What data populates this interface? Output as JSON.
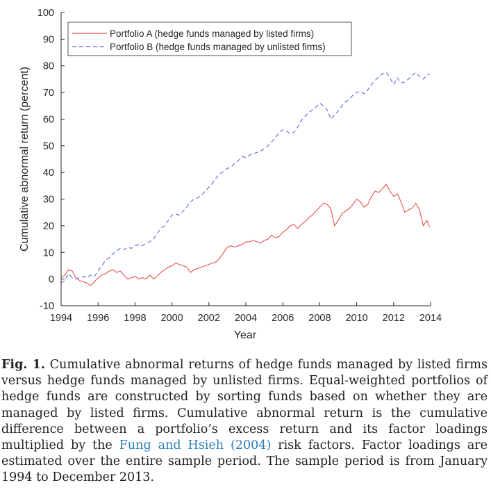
{
  "chart_data": {
    "type": "line",
    "title": "",
    "xlabel": "Year",
    "ylabel": "Cumulative abnormal return (percent)",
    "xlim": [
      1994,
      2014
    ],
    "ylim": [
      -10,
      100
    ],
    "xticks": [
      "1994",
      "1996",
      "1998",
      "2000",
      "2002",
      "2004",
      "2006",
      "2008",
      "2010",
      "2012",
      "2014"
    ],
    "yticks": [
      "-10",
      "0",
      "10",
      "20",
      "30",
      "40",
      "50",
      "60",
      "70",
      "80",
      "90",
      "100"
    ],
    "grid": false,
    "legend_position": "top-left",
    "series": [
      {
        "name": "Portfolio A (hedge funds managed by listed firms)",
        "color": "#e8504a",
        "style": "solid",
        "x": [
          1994.0,
          1994.2,
          1994.4,
          1994.6,
          1994.8,
          1995.0,
          1995.2,
          1995.4,
          1995.6,
          1995.8,
          1996.0,
          1996.2,
          1996.4,
          1996.6,
          1996.8,
          1997.0,
          1997.2,
          1997.4,
          1997.6,
          1997.8,
          1998.0,
          1998.2,
          1998.4,
          1998.6,
          1998.8,
          1999.0,
          1999.2,
          1999.4,
          1999.6,
          1999.8,
          2000.0,
          2000.2,
          2000.4,
          2000.6,
          2000.8,
          2001.0,
          2001.2,
          2001.4,
          2001.6,
          2001.8,
          2002.0,
          2002.2,
          2002.4,
          2002.6,
          2002.8,
          2003.0,
          2003.2,
          2003.4,
          2003.6,
          2003.8,
          2004.0,
          2004.2,
          2004.4,
          2004.6,
          2004.8,
          2005.0,
          2005.2,
          2005.4,
          2005.6,
          2005.8,
          2006.0,
          2006.2,
          2006.4,
          2006.6,
          2006.8,
          2007.0,
          2007.2,
          2007.4,
          2007.6,
          2007.8,
          2008.0,
          2008.2,
          2008.4,
          2008.6,
          2008.8,
          2009.0,
          2009.2,
          2009.4,
          2009.6,
          2009.8,
          2010.0,
          2010.2,
          2010.4,
          2010.6,
          2010.8,
          2011.0,
          2011.2,
          2011.4,
          2011.6,
          2011.8,
          2012.0,
          2012.2,
          2012.4,
          2012.6,
          2012.8,
          2013.0,
          2013.2,
          2013.4,
          2013.6,
          2013.8,
          2013.95
        ],
        "y": [
          0.5,
          1.5,
          3.5,
          3.0,
          0.5,
          -0.5,
          -1.0,
          -1.5,
          -2.5,
          -1.0,
          0.5,
          1.5,
          2.0,
          3.0,
          3.5,
          2.5,
          3.0,
          1.5,
          0.0,
          0.5,
          1.0,
          0.0,
          0.5,
          0.0,
          1.5,
          0.0,
          1.0,
          2.5,
          3.5,
          4.5,
          5.0,
          6.0,
          5.5,
          5.0,
          4.5,
          2.5,
          3.5,
          4.0,
          4.5,
          5.0,
          5.5,
          6.0,
          6.5,
          8.0,
          10.0,
          12.0,
          12.5,
          12.0,
          12.5,
          13.0,
          14.0,
          14.0,
          14.5,
          14.0,
          13.5,
          14.5,
          15.0,
          16.5,
          15.5,
          16.0,
          17.5,
          18.5,
          20.0,
          20.5,
          19.0,
          20.5,
          21.5,
          23.0,
          24.0,
          25.5,
          27.0,
          28.5,
          28.0,
          26.5,
          20.0,
          22.0,
          24.5,
          25.5,
          26.5,
          28.0,
          30.0,
          29.0,
          27.0,
          28.0,
          31.0,
          33.0,
          32.5,
          34.0,
          35.5,
          33.0,
          31.0,
          32.0,
          29.0,
          25.0,
          26.0,
          26.5,
          28.5,
          26.0,
          20.0,
          22.0,
          19.5
        ]
      },
      {
        "name": "Portfolio B (hedge funds managed by unlisted firms)",
        "color": "#5a66e8",
        "style": "dashed",
        "x": [
          1994.0,
          1994.2,
          1994.4,
          1994.6,
          1994.8,
          1995.0,
          1995.2,
          1995.4,
          1995.6,
          1995.8,
          1996.0,
          1996.2,
          1996.4,
          1996.6,
          1996.8,
          1997.0,
          1997.2,
          1997.4,
          1997.6,
          1997.8,
          1998.0,
          1998.2,
          1998.4,
          1998.6,
          1998.8,
          1999.0,
          1999.2,
          1999.4,
          1999.6,
          1999.8,
          2000.0,
          2000.2,
          2000.4,
          2000.6,
          2000.8,
          2001.0,
          2001.2,
          2001.4,
          2001.6,
          2001.8,
          2002.0,
          2002.2,
          2002.4,
          2002.6,
          2002.8,
          2003.0,
          2003.2,
          2003.4,
          2003.6,
          2003.8,
          2004.0,
          2004.2,
          2004.4,
          2004.6,
          2004.8,
          2005.0,
          2005.2,
          2005.4,
          2005.6,
          2005.8,
          2006.0,
          2006.2,
          2006.4,
          2006.6,
          2006.8,
          2007.0,
          2007.2,
          2007.4,
          2007.6,
          2007.8,
          2008.0,
          2008.2,
          2008.4,
          2008.6,
          2008.8,
          2009.0,
          2009.2,
          2009.4,
          2009.6,
          2009.8,
          2010.0,
          2010.2,
          2010.4,
          2010.6,
          2010.8,
          2011.0,
          2011.2,
          2011.4,
          2011.6,
          2011.8,
          2012.0,
          2012.2,
          2012.4,
          2012.6,
          2012.8,
          2013.0,
          2013.2,
          2013.4,
          2013.6,
          2013.8,
          2013.95
        ],
        "y": [
          -1.5,
          -0.5,
          2.0,
          0.5,
          0.0,
          0.5,
          1.0,
          0.5,
          1.5,
          1.0,
          3.0,
          5.0,
          7.0,
          8.0,
          9.5,
          10.5,
          11.5,
          11.0,
          12.0,
          11.5,
          12.5,
          13.0,
          12.5,
          13.5,
          14.0,
          15.0,
          17.0,
          19.0,
          20.0,
          22.0,
          24.0,
          24.5,
          24.0,
          25.5,
          27.0,
          29.0,
          30.0,
          30.5,
          31.5,
          33.0,
          34.5,
          36.0,
          38.0,
          39.5,
          40.5,
          41.5,
          42.0,
          43.5,
          44.5,
          46.0,
          45.5,
          46.5,
          47.0,
          47.5,
          48.0,
          49.0,
          50.0,
          51.5,
          53.0,
          55.0,
          56.0,
          55.5,
          54.5,
          55.0,
          57.0,
          59.5,
          61.0,
          62.5,
          63.5,
          64.5,
          66.0,
          65.0,
          63.5,
          60.0,
          61.5,
          63.0,
          65.0,
          66.5,
          67.5,
          69.0,
          70.0,
          70.5,
          69.5,
          71.0,
          73.0,
          74.5,
          76.0,
          77.0,
          77.5,
          75.5,
          73.0,
          75.5,
          73.5,
          74.0,
          75.0,
          76.5,
          77.5,
          76.0,
          75.0,
          76.5,
          77.0
        ]
      }
    ]
  },
  "caption": {
    "label": "Fig. 1.",
    "text_before_ref": " Cumulative abnormal returns of hedge funds managed by listed firms versus hedge funds managed by unlisted firms. Equal-weighted portfolios of hedge funds are constructed by sorting funds based on whether they are managed by listed firms. Cumulative abnormal return is the cumulative difference between a portfolio’s excess return and its factor loadings multiplied by the ",
    "reference": "Fung and Hsieh (2004)",
    "text_after_ref": " risk factors. Factor loadings are estimated over the entire sample period. The sample period is from January 1994 to December 2013."
  }
}
